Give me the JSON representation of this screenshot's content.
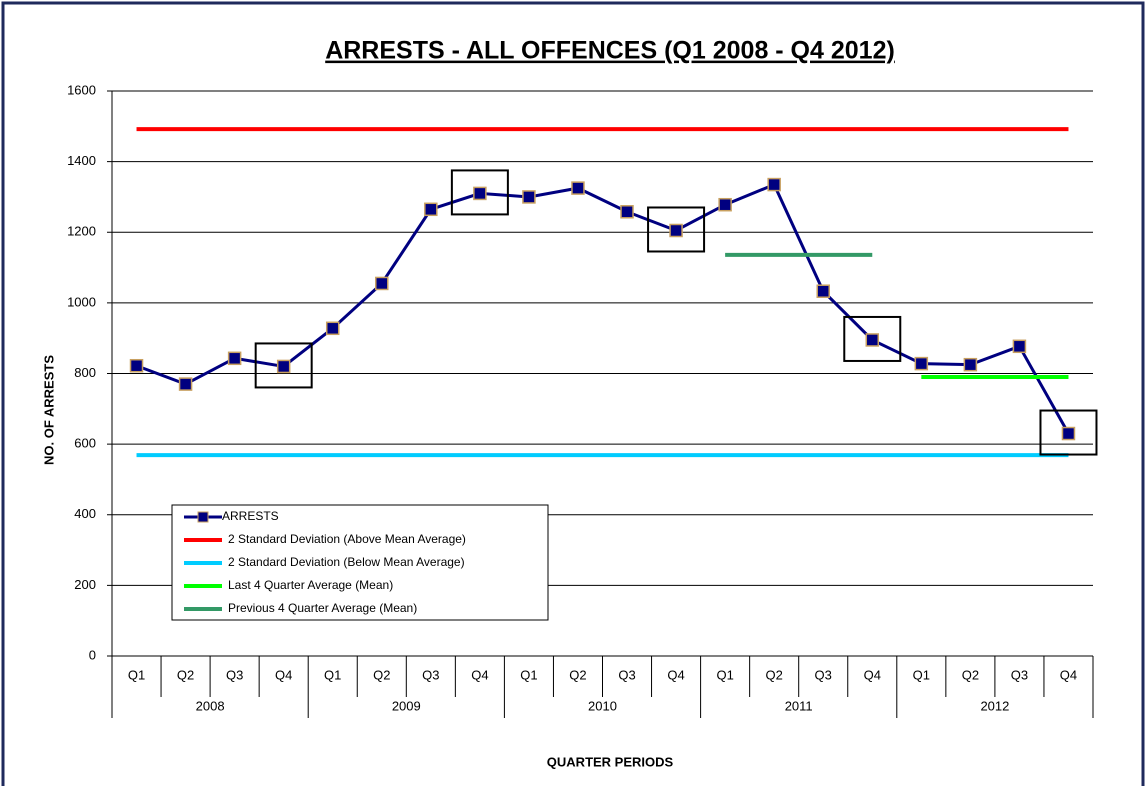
{
  "chart_data": {
    "type": "line",
    "title": "ARRESTS - ALL OFFENCES (Q1 2008 - Q4 2012)",
    "x_label": "QUARTER  PERIODS",
    "y_label": "NO. OF ARRESTS",
    "categories": [
      "Q1",
      "Q2",
      "Q3",
      "Q4",
      "Q1",
      "Q2",
      "Q3",
      "Q4",
      "Q1",
      "Q2",
      "Q3",
      "Q4",
      "Q1",
      "Q2",
      "Q3",
      "Q4",
      "Q1",
      "Q2",
      "Q3",
      "Q4"
    ],
    "years": [
      "2008",
      "2009",
      "2010",
      "2011",
      "2012"
    ],
    "ylim": [
      0,
      1600
    ],
    "yticks": [
      0,
      200,
      400,
      600,
      800,
      1000,
      1200,
      1400,
      1600
    ],
    "grid": true,
    "legend": "lower left",
    "highlight": [
      3,
      7,
      11,
      15,
      19
    ],
    "series": [
      {
        "name": "ARRESTS",
        "color": "#000080",
        "marker": true,
        "values": [
          822,
          770,
          843,
          820,
          928,
          1055,
          1265,
          1310,
          1300,
          1325,
          1258,
          1205,
          1278,
          1335,
          1033,
          895,
          828,
          825,
          877,
          630
        ]
      },
      {
        "name": "2 Standard Deviation (Above Mean Average)",
        "color": "#ff0000",
        "values": [
          1492,
          1492,
          1492,
          1492,
          1492,
          1492,
          1492,
          1492,
          1492,
          1492,
          1492,
          1492,
          1492,
          1492,
          1492,
          1492,
          1492,
          1492,
          1492,
          1492
        ]
      },
      {
        "name": "2 Standard Deviation (Below Mean Average)",
        "color": "#00ccff",
        "values": [
          569,
          569,
          569,
          569,
          569,
          569,
          569,
          569,
          569,
          569,
          569,
          569,
          569,
          569,
          569,
          569,
          569,
          569,
          569,
          569
        ]
      },
      {
        "name": "Last 4 Quarter Average (Mean)",
        "color": "#00ff00",
        "values": [
          null,
          null,
          null,
          null,
          null,
          null,
          null,
          null,
          null,
          null,
          null,
          null,
          null,
          null,
          null,
          null,
          790,
          790,
          790,
          790
        ]
      },
      {
        "name": "Previous 4 Quarter Average (Mean)",
        "color": "#339966",
        "values": [
          null,
          null,
          null,
          null,
          null,
          null,
          null,
          null,
          null,
          null,
          null,
          null,
          1136,
          1136,
          1136,
          1136,
          null,
          null,
          null,
          null
        ]
      }
    ]
  }
}
